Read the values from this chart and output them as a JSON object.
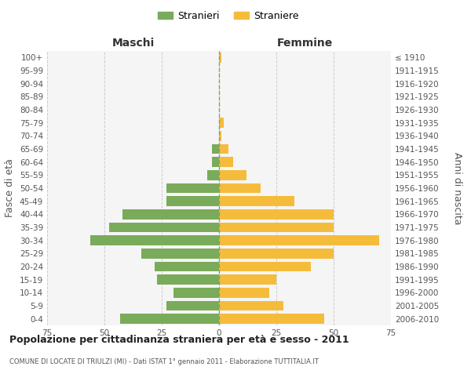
{
  "age_groups": [
    "0-4",
    "5-9",
    "10-14",
    "15-19",
    "20-24",
    "25-29",
    "30-34",
    "35-39",
    "40-44",
    "45-49",
    "50-54",
    "55-59",
    "60-64",
    "65-69",
    "70-74",
    "75-79",
    "80-84",
    "85-89",
    "90-94",
    "95-99",
    "100+"
  ],
  "birth_years": [
    "2006-2010",
    "2001-2005",
    "1996-2000",
    "1991-1995",
    "1986-1990",
    "1981-1985",
    "1976-1980",
    "1971-1975",
    "1966-1970",
    "1961-1965",
    "1956-1960",
    "1951-1955",
    "1946-1950",
    "1941-1945",
    "1936-1940",
    "1931-1935",
    "1926-1930",
    "1921-1925",
    "1916-1920",
    "1911-1915",
    "≤ 1910"
  ],
  "maschi": [
    43,
    23,
    20,
    27,
    28,
    34,
    56,
    48,
    42,
    23,
    23,
    5,
    3,
    3,
    0,
    0,
    0,
    0,
    0,
    0,
    0
  ],
  "femmine": [
    46,
    28,
    22,
    25,
    40,
    50,
    70,
    50,
    50,
    33,
    18,
    12,
    6,
    4,
    1,
    2,
    0,
    0,
    0,
    0,
    1
  ],
  "male_color": "#7aab5a",
  "female_color": "#f5bc3c",
  "center_line_color": "#999966",
  "grid_color": "#cccccc",
  "bg_color": "#f5f5f5",
  "title": "Popolazione per cittadinanza straniera per età e sesso - 2011",
  "subtitle": "COMUNE DI LOCATE DI TRIULZI (MI) - Dati ISTAT 1° gennaio 2011 - Elaborazione TUTTITALIA.IT",
  "label_maschi": "Maschi",
  "label_femmine": "Femmine",
  "ylabel_left": "Fasce di età",
  "ylabel_right": "Anni di nascita",
  "legend_male": "Stranieri",
  "legend_female": "Straniere",
  "xlim": 75
}
